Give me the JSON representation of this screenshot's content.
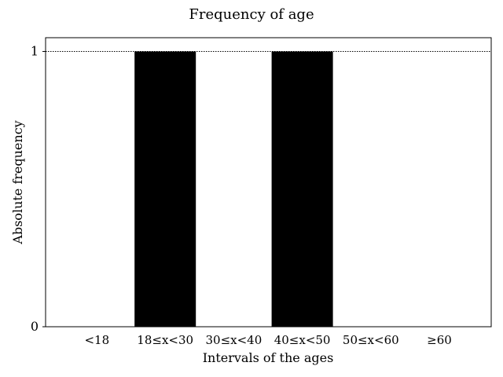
{
  "chart_data": {
    "type": "bar",
    "title": "Frequency of age",
    "xlabel": "Intervals of the ages",
    "ylabel": "Absolute frequency",
    "categories": [
      "<18",
      "18≤x<30",
      "30≤x<40",
      "40≤x<50",
      "50≤x<60",
      "≥60"
    ],
    "values": [
      0,
      1,
      0,
      1,
      0,
      0
    ],
    "ylim": [
      0,
      1.05
    ],
    "yticks": [
      0,
      1
    ],
    "ytick_labels": [
      "0",
      "1"
    ],
    "grid": false,
    "reference_line": {
      "y": 1,
      "style": "dotted"
    },
    "bar_color": "#000000"
  }
}
